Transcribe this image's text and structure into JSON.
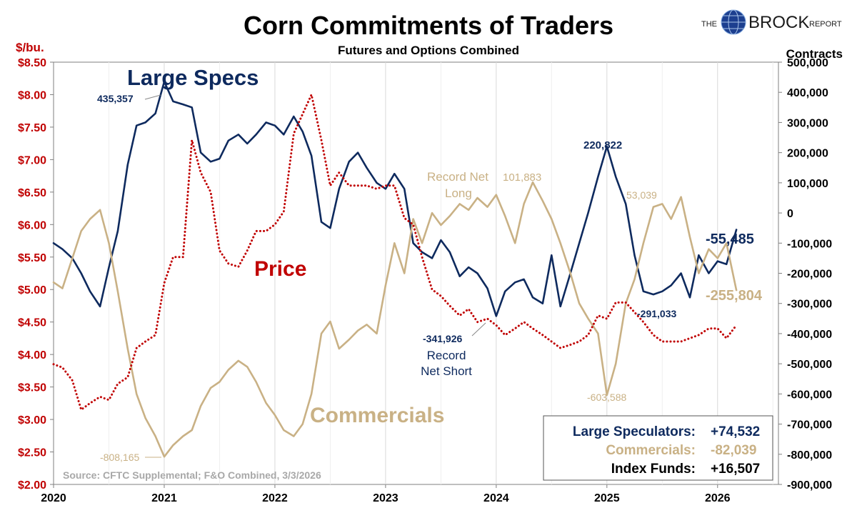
{
  "chart_data": {
    "type": "line",
    "title": "Corn Commitments of Traders",
    "subtitle": "Futures and Options Combined",
    "ylabel_left": "$/bu.",
    "ylabel_right": "Contracts",
    "left_axis_ticks": [
      "$8.50",
      "$8.00",
      "$7.50",
      "$7.00",
      "$6.50",
      "$6.00",
      "$5.50",
      "$5.00",
      "$4.50",
      "$4.00",
      "$3.50",
      "$3.00",
      "$2.50",
      "$2.00"
    ],
    "right_axis_ticks": [
      "500,000",
      "400,000",
      "300,000",
      "200,000",
      "100,000",
      "0",
      "-100,000",
      "-200,000",
      "-300,000",
      "-400,000",
      "-500,000",
      "-600,000",
      "-700,000",
      "-800,000",
      "-900,000"
    ],
    "x_ticks": [
      "2020",
      "2021",
      "2022",
      "2023",
      "2024",
      "2025",
      "2026"
    ],
    "ylim_left": [
      2.0,
      8.5
    ],
    "ylim_right": [
      -900000,
      500000
    ],
    "xlim": [
      2020.0,
      2026.55
    ],
    "series": [
      {
        "name": "Large Specs",
        "axis": "right",
        "color": "#0e2a5e",
        "style": "solid",
        "x": [
          2020.0,
          2020.08,
          2020.17,
          2020.25,
          2020.33,
          2020.42,
          2020.5,
          2020.58,
          2020.67,
          2020.75,
          2020.83,
          2020.92,
          2021.0,
          2021.08,
          2021.17,
          2021.25,
          2021.33,
          2021.42,
          2021.5,
          2021.58,
          2021.67,
          2021.75,
          2021.83,
          2021.92,
          2022.0,
          2022.08,
          2022.17,
          2022.25,
          2022.33,
          2022.42,
          2022.5,
          2022.58,
          2022.67,
          2022.75,
          2022.83,
          2022.92,
          2023.0,
          2023.08,
          2023.17,
          2023.25,
          2023.33,
          2023.42,
          2023.5,
          2023.58,
          2023.67,
          2023.75,
          2023.83,
          2023.92,
          2024.0,
          2024.08,
          2024.17,
          2024.25,
          2024.33,
          2024.42,
          2024.5,
          2024.58,
          2024.67,
          2024.75,
          2024.83,
          2024.92,
          2025.0,
          2025.08,
          2025.17,
          2025.25,
          2025.33,
          2025.42,
          2025.5,
          2025.58,
          2025.67,
          2025.75,
          2025.83,
          2025.92,
          2026.0,
          2026.08,
          2026.17
        ],
        "values": [
          -100000,
          -120000,
          -150000,
          -200000,
          -260000,
          -310000,
          -180000,
          -60000,
          160000,
          290000,
          300000,
          330000,
          435357,
          370000,
          360000,
          350000,
          200000,
          170000,
          180000,
          240000,
          260000,
          230000,
          260000,
          300000,
          290000,
          260000,
          320000,
          270000,
          190000,
          -30000,
          -50000,
          80000,
          170000,
          200000,
          150000,
          100000,
          80000,
          130000,
          80000,
          -100000,
          -130000,
          -150000,
          -90000,
          -130000,
          -210000,
          -180000,
          -200000,
          -250000,
          -341926,
          -260000,
          -230000,
          -220000,
          -280000,
          -300000,
          -140000,
          -310000,
          -200000,
          -100000,
          0,
          120000,
          220822,
          120000,
          30000,
          -140000,
          -260000,
          -270000,
          -260000,
          -240000,
          -200000,
          -280000,
          -140000,
          -200000,
          -160000,
          -170000,
          -55485
        ]
      },
      {
        "name": "Commercials",
        "axis": "right",
        "color": "#c9b185",
        "style": "solid",
        "x": [
          2020.0,
          2020.08,
          2020.17,
          2020.25,
          2020.33,
          2020.42,
          2020.5,
          2020.58,
          2020.67,
          2020.75,
          2020.83,
          2020.92,
          2021.0,
          2021.08,
          2021.17,
          2021.25,
          2021.33,
          2021.42,
          2021.5,
          2021.58,
          2021.67,
          2021.75,
          2021.83,
          2021.92,
          2022.0,
          2022.08,
          2022.17,
          2022.25,
          2022.33,
          2022.42,
          2022.5,
          2022.58,
          2022.67,
          2022.75,
          2022.83,
          2022.92,
          2023.0,
          2023.08,
          2023.17,
          2023.25,
          2023.33,
          2023.42,
          2023.5,
          2023.58,
          2023.67,
          2023.75,
          2023.83,
          2023.92,
          2024.0,
          2024.08,
          2024.17,
          2024.25,
          2024.33,
          2024.42,
          2024.5,
          2024.58,
          2024.67,
          2024.75,
          2024.83,
          2024.92,
          2025.0,
          2025.08,
          2025.17,
          2025.25,
          2025.33,
          2025.42,
          2025.5,
          2025.58,
          2025.67,
          2025.75,
          2025.83,
          2025.92,
          2026.0,
          2026.08,
          2026.17
        ],
        "values": [
          -230000,
          -250000,
          -150000,
          -60000,
          -20000,
          10000,
          -100000,
          -260000,
          -450000,
          -600000,
          -680000,
          -740000,
          -808165,
          -770000,
          -740000,
          -720000,
          -640000,
          -580000,
          -560000,
          -520000,
          -490000,
          -510000,
          -560000,
          -630000,
          -670000,
          -720000,
          -740000,
          -700000,
          -600000,
          -400000,
          -360000,
          -450000,
          -420000,
          -390000,
          -370000,
          -400000,
          -240000,
          -100000,
          -200000,
          -20000,
          -100000,
          0,
          -40000,
          -10000,
          30000,
          10000,
          50000,
          20000,
          60000,
          -10000,
          -100000,
          30000,
          101883,
          40000,
          -20000,
          -100000,
          -200000,
          -300000,
          -350000,
          -400000,
          -603588,
          -500000,
          -300000,
          -220000,
          -100000,
          20000,
          30000,
          -20000,
          53039,
          -80000,
          -200000,
          -120000,
          -150000,
          -100000,
          -255804
        ]
      },
      {
        "name": "Price",
        "axis": "left",
        "color": "#c00000",
        "style": "dotted",
        "x": [
          2020.0,
          2020.08,
          2020.17,
          2020.25,
          2020.33,
          2020.42,
          2020.5,
          2020.58,
          2020.67,
          2020.75,
          2020.83,
          2020.92,
          2021.0,
          2021.08,
          2021.17,
          2021.25,
          2021.33,
          2021.42,
          2021.5,
          2021.58,
          2021.67,
          2021.75,
          2021.83,
          2021.92,
          2022.0,
          2022.08,
          2022.17,
          2022.25,
          2022.33,
          2022.42,
          2022.5,
          2022.58,
          2022.67,
          2022.75,
          2022.83,
          2022.92,
          2023.0,
          2023.08,
          2023.17,
          2023.25,
          2023.33,
          2023.42,
          2023.5,
          2023.58,
          2023.67,
          2023.75,
          2023.83,
          2023.92,
          2024.0,
          2024.08,
          2024.17,
          2024.25,
          2024.33,
          2024.42,
          2024.5,
          2024.58,
          2024.67,
          2024.75,
          2024.83,
          2024.92,
          2025.0,
          2025.08,
          2025.17,
          2025.25,
          2025.33,
          2025.42,
          2025.5,
          2025.58,
          2025.67,
          2025.75,
          2025.83,
          2025.92,
          2026.0,
          2026.08,
          2026.17
        ],
        "values": [
          3.85,
          3.8,
          3.6,
          3.15,
          3.25,
          3.35,
          3.3,
          3.55,
          3.65,
          4.1,
          4.2,
          4.3,
          5.1,
          5.5,
          5.5,
          7.3,
          6.8,
          6.5,
          5.6,
          5.4,
          5.35,
          5.6,
          5.9,
          5.9,
          6.0,
          6.2,
          7.4,
          7.7,
          8.0,
          7.3,
          6.6,
          6.8,
          6.6,
          6.6,
          6.6,
          6.55,
          6.6,
          6.6,
          6.1,
          6.0,
          5.5,
          5.0,
          4.9,
          4.75,
          4.6,
          4.7,
          4.5,
          4.55,
          4.45,
          4.3,
          4.4,
          4.5,
          4.4,
          4.3,
          4.2,
          4.1,
          4.15,
          4.2,
          4.3,
          4.6,
          4.55,
          4.8,
          4.8,
          4.65,
          4.5,
          4.3,
          4.2,
          4.2,
          4.2,
          4.25,
          4.3,
          4.4,
          4.4,
          4.25,
          4.45
        ]
      }
    ],
    "annotations": [
      "435,357",
      "Large Specs",
      "Price",
      "Commercials",
      "-808,165",
      "Record Net",
      "Long",
      "101,883",
      "-341,926",
      "Record",
      "Net Short",
      "220,822",
      "53,039",
      "-603,588",
      "-291,033",
      "-55,485",
      "-255,804"
    ],
    "source": "Source: CFTC Supplemental; F&O Combined, 3/3/2026",
    "legend_box": [
      {
        "label": "Large Speculators:",
        "value": "+74,532",
        "color": "#0e2a5e"
      },
      {
        "label": "Commercials:",
        "value": "-82,039",
        "color": "#c9b185"
      },
      {
        "label": "Index Funds:",
        "value": "+16,507",
        "color": "#000000"
      }
    ]
  },
  "logo": {
    "prefix": "THE",
    "name": "BROCK",
    "suffix": "REPORT"
  }
}
